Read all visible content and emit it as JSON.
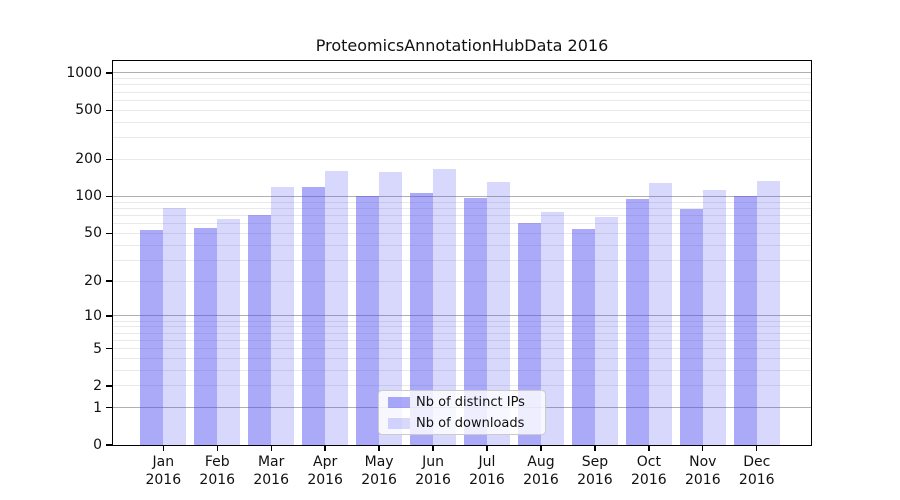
{
  "title": "ProteomicsAnnotationHubData 2016",
  "colors": {
    "ips_bar": "rgba(70,70,240,0.46)",
    "downloads_bar": "rgba(70,70,240,0.21)",
    "ips_bar_hex_on_white": "#aaaaf8",
    "downloads_bar_hex_on_white": "#d8d8fb",
    "grid_major": "#b0b0b0",
    "grid_minor": "#e9e9e9",
    "axis": "#000000"
  },
  "legend": {
    "items": [
      {
        "label": "Nb of distinct IPs",
        "color_key": "ips_bar"
      },
      {
        "label": "Nb of downloads",
        "color_key": "downloads_bar"
      }
    ]
  },
  "chart_data": {
    "type": "bar",
    "title": "ProteomicsAnnotationHubData 2016",
    "categories": [
      "Jan 2016",
      "Feb 2016",
      "Mar 2016",
      "Apr 2016",
      "May 2016",
      "Jun 2016",
      "Jul 2016",
      "Aug 2016",
      "Sep 2016",
      "Oct 2016",
      "Nov 2016",
      "Dec 2016"
    ],
    "x_tick_labels_line1": [
      "Jan",
      "Feb",
      "Mar",
      "Apr",
      "May",
      "Jun",
      "Jul",
      "Aug",
      "Sep",
      "Oct",
      "Nov",
      "Dec"
    ],
    "x_tick_labels_line2": [
      "2016",
      "2016",
      "2016",
      "2016",
      "2016",
      "2016",
      "2016",
      "2016",
      "2016",
      "2016",
      "2016",
      "2016"
    ],
    "series": [
      {
        "name": "Nb of distinct IPs",
        "values": [
          53,
          55,
          71,
          120,
          100,
          107,
          97,
          61,
          54,
          95,
          79,
          101
        ]
      },
      {
        "name": "Nb of downloads",
        "values": [
          80,
          65,
          120,
          162,
          157,
          167,
          130,
          75,
          68,
          129,
          113,
          133
        ]
      }
    ],
    "xlabel": "",
    "ylabel": "",
    "yscale": "log1p",
    "yticks": [
      0,
      1,
      2,
      5,
      10,
      20,
      50,
      100,
      200,
      500,
      1000
    ],
    "y_major_gridlines": [
      1,
      10,
      100,
      1000
    ],
    "ylim": [
      0,
      1300
    ],
    "grid": true,
    "legend_position": "lower-center-inside"
  }
}
